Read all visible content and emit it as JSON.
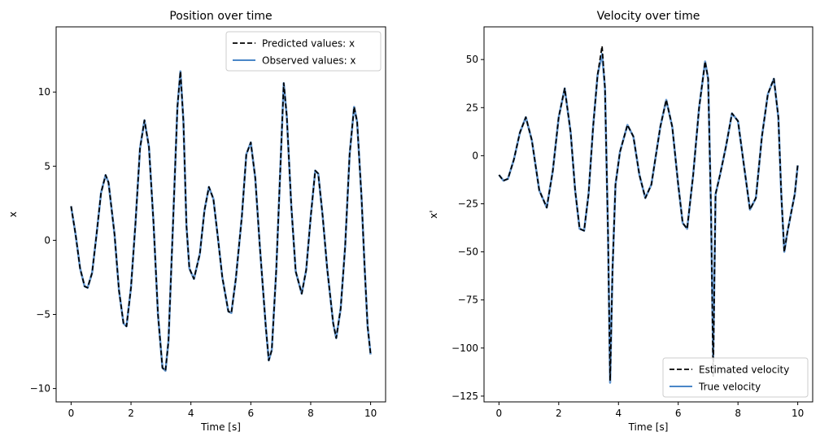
{
  "chart_data": [
    {
      "type": "line",
      "title": "Position over time",
      "xlabel": "Time [s]",
      "ylabel": "x",
      "xlim": [
        -0.5,
        10.5
      ],
      "ylim": [
        -10.9,
        14.4
      ],
      "xticks": [
        0,
        2,
        4,
        6,
        8,
        10
      ],
      "yticks": [
        -10,
        -5,
        0,
        5,
        10
      ],
      "grid": false,
      "legend_position": "top-right",
      "series": [
        {
          "name": "Predicted values: x",
          "style": "dashed",
          "color": "#000000",
          "points": [
            [
              0,
              2.3
            ],
            [
              0.15,
              0.4
            ],
            [
              0.3,
              -1.9
            ],
            [
              0.45,
              -3.1
            ],
            [
              0.55,
              -3.2
            ],
            [
              0.7,
              -2.2
            ],
            [
              0.85,
              0.4
            ],
            [
              1.0,
              3.2
            ],
            [
              1.15,
              4.4
            ],
            [
              1.25,
              3.9
            ],
            [
              1.45,
              0.4
            ],
            [
              1.6,
              -3.4
            ],
            [
              1.75,
              -5.6
            ],
            [
              1.85,
              -5.8
            ],
            [
              2.0,
              -3.2
            ],
            [
              2.15,
              1.2
            ],
            [
              2.3,
              6.2
            ],
            [
              2.45,
              8.1
            ],
            [
              2.6,
              6.3
            ],
            [
              2.75,
              1.2
            ],
            [
              2.9,
              -5.0
            ],
            [
              3.05,
              -8.6
            ],
            [
              3.15,
              -8.8
            ],
            [
              3.25,
              -6.8
            ],
            [
              3.4,
              1.0
            ],
            [
              3.55,
              9.0
            ],
            [
              3.65,
              11.4
            ],
            [
              3.75,
              8.0
            ],
            [
              3.85,
              1.0
            ],
            [
              3.95,
              -1.9
            ],
            [
              4.1,
              -2.6
            ],
            [
              4.3,
              -0.9
            ],
            [
              4.45,
              2.0
            ],
            [
              4.6,
              3.6
            ],
            [
              4.75,
              2.8
            ],
            [
              4.9,
              0.2
            ],
            [
              5.05,
              -2.5
            ],
            [
              5.25,
              -4.8
            ],
            [
              5.35,
              -4.9
            ],
            [
              5.5,
              -2.6
            ],
            [
              5.7,
              1.6
            ],
            [
              5.85,
              5.8
            ],
            [
              6.0,
              6.6
            ],
            [
              6.15,
              4.2
            ],
            [
              6.3,
              -0.4
            ],
            [
              6.5,
              -5.8
            ],
            [
              6.6,
              -8.1
            ],
            [
              6.7,
              -7.4
            ],
            [
              6.85,
              -2.0
            ],
            [
              7.0,
              5.5
            ],
            [
              7.1,
              10.6
            ],
            [
              7.2,
              8.4
            ],
            [
              7.35,
              2.4
            ],
            [
              7.5,
              -2.1
            ],
            [
              7.7,
              -3.6
            ],
            [
              7.85,
              -2.0
            ],
            [
              8.0,
              1.6
            ],
            [
              8.15,
              4.7
            ],
            [
              8.25,
              4.5
            ],
            [
              8.4,
              1.6
            ],
            [
              8.55,
              -1.9
            ],
            [
              8.75,
              -5.6
            ],
            [
              8.85,
              -6.6
            ],
            [
              9.0,
              -4.6
            ],
            [
              9.15,
              -0.4
            ],
            [
              9.3,
              5.8
            ],
            [
              9.45,
              9.0
            ],
            [
              9.55,
              8.0
            ],
            [
              9.7,
              2.8
            ],
            [
              9.8,
              -1.8
            ],
            [
              9.9,
              -5.8
            ],
            [
              10.0,
              -7.7
            ]
          ]
        },
        {
          "name": "Observed values: x",
          "style": "solid",
          "color": "#4a86c8",
          "points": [
            [
              0,
              2.3
            ],
            [
              0.15,
              0.4
            ],
            [
              0.3,
              -1.9
            ],
            [
              0.45,
              -3.1
            ],
            [
              0.55,
              -3.2
            ],
            [
              0.7,
              -2.2
            ],
            [
              0.85,
              0.4
            ],
            [
              1.0,
              3.2
            ],
            [
              1.15,
              4.4
            ],
            [
              1.25,
              3.9
            ],
            [
              1.45,
              0.4
            ],
            [
              1.6,
              -3.4
            ],
            [
              1.75,
              -5.6
            ],
            [
              1.85,
              -5.8
            ],
            [
              2.0,
              -3.2
            ],
            [
              2.15,
              1.2
            ],
            [
              2.3,
              6.2
            ],
            [
              2.45,
              8.1
            ],
            [
              2.6,
              6.3
            ],
            [
              2.75,
              1.2
            ],
            [
              2.9,
              -5.0
            ],
            [
              3.05,
              -8.6
            ],
            [
              3.15,
              -8.8
            ],
            [
              3.25,
              -6.8
            ],
            [
              3.4,
              1.0
            ],
            [
              3.55,
              9.0
            ],
            [
              3.65,
              11.4
            ],
            [
              3.75,
              8.0
            ],
            [
              3.85,
              1.0
            ],
            [
              3.95,
              -1.9
            ],
            [
              4.1,
              -2.6
            ],
            [
              4.3,
              -0.9
            ],
            [
              4.45,
              2.0
            ],
            [
              4.6,
              3.6
            ],
            [
              4.75,
              2.8
            ],
            [
              4.9,
              0.2
            ],
            [
              5.05,
              -2.5
            ],
            [
              5.25,
              -4.8
            ],
            [
              5.35,
              -4.9
            ],
            [
              5.5,
              -2.6
            ],
            [
              5.7,
              1.6
            ],
            [
              5.85,
              5.8
            ],
            [
              6.0,
              6.6
            ],
            [
              6.15,
              4.2
            ],
            [
              6.3,
              -0.4
            ],
            [
              6.5,
              -5.8
            ],
            [
              6.6,
              -8.1
            ],
            [
              6.7,
              -7.4
            ],
            [
              6.85,
              -2.0
            ],
            [
              7.0,
              5.5
            ],
            [
              7.1,
              10.6
            ],
            [
              7.2,
              8.4
            ],
            [
              7.35,
              2.4
            ],
            [
              7.5,
              -2.1
            ],
            [
              7.7,
              -3.6
            ],
            [
              7.85,
              -2.0
            ],
            [
              8.0,
              1.6
            ],
            [
              8.15,
              4.7
            ],
            [
              8.25,
              4.5
            ],
            [
              8.4,
              1.6
            ],
            [
              8.55,
              -1.9
            ],
            [
              8.75,
              -5.6
            ],
            [
              8.85,
              -6.6
            ],
            [
              9.0,
              -4.6
            ],
            [
              9.15,
              -0.4
            ],
            [
              9.3,
              5.8
            ],
            [
              9.45,
              9.0
            ],
            [
              9.55,
              8.0
            ],
            [
              9.7,
              2.8
            ],
            [
              9.8,
              -1.8
            ],
            [
              9.9,
              -5.8
            ],
            [
              10.0,
              -7.7
            ]
          ]
        }
      ]
    },
    {
      "type": "line",
      "title": "Velocity over time",
      "xlabel": "Time [s]",
      "ylabel": "x'",
      "xlim": [
        -0.5,
        10.5
      ],
      "ylim": [
        -128,
        67
      ],
      "xticks": [
        0,
        2,
        4,
        6,
        8,
        10
      ],
      "yticks": [
        -125,
        -100,
        -75,
        -50,
        -25,
        0,
        25,
        50
      ],
      "grid": false,
      "legend_position": "bottom-right",
      "series": [
        {
          "name": "Estimated velocity",
          "style": "dashed",
          "color": "#000000",
          "points": [
            [
              0,
              -10
            ],
            [
              0.15,
              -13
            ],
            [
              0.3,
              -12
            ],
            [
              0.5,
              -2
            ],
            [
              0.7,
              12
            ],
            [
              0.9,
              20
            ],
            [
              1.1,
              8
            ],
            [
              1.35,
              -18
            ],
            [
              1.6,
              -27
            ],
            [
              1.8,
              -8
            ],
            [
              2.0,
              20
            ],
            [
              2.2,
              35
            ],
            [
              2.4,
              12
            ],
            [
              2.55,
              -18
            ],
            [
              2.7,
              -38
            ],
            [
              2.85,
              -39
            ],
            [
              3.0,
              -20
            ],
            [
              3.15,
              15
            ],
            [
              3.3,
              42
            ],
            [
              3.45,
              57
            ],
            [
              3.55,
              35
            ],
            [
              3.65,
              -40
            ],
            [
              3.72,
              -117
            ],
            [
              3.8,
              -60
            ],
            [
              3.9,
              -15
            ],
            [
              4.05,
              2
            ],
            [
              4.3,
              16
            ],
            [
              4.5,
              10
            ],
            [
              4.7,
              -10
            ],
            [
              4.9,
              -22
            ],
            [
              5.1,
              -15
            ],
            [
              5.4,
              15
            ],
            [
              5.6,
              29
            ],
            [
              5.8,
              15
            ],
            [
              6.0,
              -15
            ],
            [
              6.15,
              -35
            ],
            [
              6.3,
              -38
            ],
            [
              6.5,
              -10
            ],
            [
              6.7,
              25
            ],
            [
              6.9,
              49
            ],
            [
              7.0,
              40
            ],
            [
              7.1,
              -30
            ],
            [
              7.17,
              -115
            ],
            [
              7.25,
              -20
            ],
            [
              7.4,
              -10
            ],
            [
              7.6,
              5
            ],
            [
              7.8,
              22
            ],
            [
              8.0,
              18
            ],
            [
              8.2,
              -5
            ],
            [
              8.4,
              -28
            ],
            [
              8.6,
              -22
            ],
            [
              8.8,
              10
            ],
            [
              9.0,
              32
            ],
            [
              9.2,
              40
            ],
            [
              9.35,
              20
            ],
            [
              9.45,
              -20
            ],
            [
              9.55,
              -50
            ],
            [
              9.65,
              -40
            ],
            [
              9.8,
              -28
            ],
            [
              9.9,
              -20
            ],
            [
              10.0,
              -5
            ]
          ]
        },
        {
          "name": "True velocity",
          "style": "solid",
          "color": "#4a86c8",
          "points": [
            [
              0,
              -10
            ],
            [
              0.15,
              -13
            ],
            [
              0.3,
              -12
            ],
            [
              0.5,
              -2
            ],
            [
              0.7,
              12
            ],
            [
              0.9,
              20
            ],
            [
              1.1,
              8
            ],
            [
              1.35,
              -18
            ],
            [
              1.6,
              -27
            ],
            [
              1.8,
              -8
            ],
            [
              2.0,
              20
            ],
            [
              2.2,
              35
            ],
            [
              2.4,
              12
            ],
            [
              2.55,
              -18
            ],
            [
              2.7,
              -38
            ],
            [
              2.85,
              -39
            ],
            [
              3.0,
              -20
            ],
            [
              3.15,
              15
            ],
            [
              3.3,
              42
            ],
            [
              3.45,
              53
            ],
            [
              3.55,
              35
            ],
            [
              3.65,
              -40
            ],
            [
              3.72,
              -118
            ],
            [
              3.8,
              -60
            ],
            [
              3.9,
              -15
            ],
            [
              4.05,
              2
            ],
            [
              4.3,
              16
            ],
            [
              4.5,
              10
            ],
            [
              4.7,
              -10
            ],
            [
              4.9,
              -22
            ],
            [
              5.1,
              -15
            ],
            [
              5.4,
              15
            ],
            [
              5.6,
              29
            ],
            [
              5.8,
              15
            ],
            [
              6.0,
              -15
            ],
            [
              6.15,
              -35
            ],
            [
              6.3,
              -38
            ],
            [
              6.5,
              -10
            ],
            [
              6.7,
              25
            ],
            [
              6.9,
              49
            ],
            [
              7.0,
              40
            ],
            [
              7.1,
              -30
            ],
            [
              7.17,
              -105
            ],
            [
              7.25,
              -20
            ],
            [
              7.4,
              -10
            ],
            [
              7.6,
              5
            ],
            [
              7.8,
              22
            ],
            [
              8.0,
              18
            ],
            [
              8.2,
              -5
            ],
            [
              8.4,
              -28
            ],
            [
              8.6,
              -22
            ],
            [
              8.8,
              10
            ],
            [
              9.0,
              32
            ],
            [
              9.2,
              40
            ],
            [
              9.35,
              20
            ],
            [
              9.45,
              -20
            ],
            [
              9.55,
              -50
            ],
            [
              9.65,
              -40
            ],
            [
              9.8,
              -28
            ],
            [
              9.9,
              -20
            ],
            [
              10.0,
              -5
            ]
          ]
        }
      ]
    }
  ]
}
